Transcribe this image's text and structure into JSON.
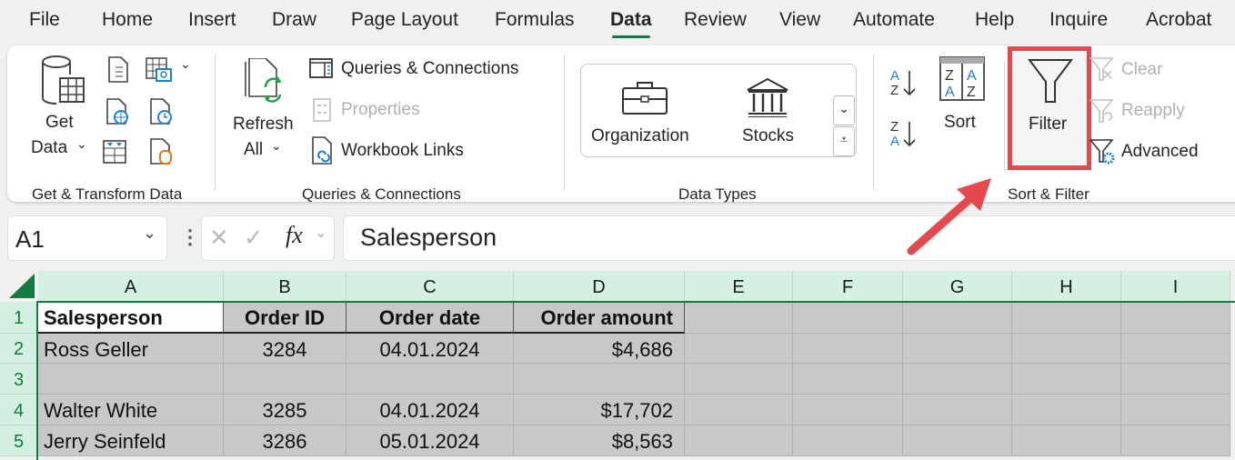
{
  "tabs": [
    "File",
    "Home",
    "Insert",
    "Draw",
    "Page Layout",
    "Formulas",
    "Data",
    "Review",
    "View",
    "Automate",
    "Help",
    "Inquire",
    "Acrobat"
  ],
  "active_tab": "Data",
  "ribbon": {
    "get_data_line1": "Get",
    "get_data_line2": "Data",
    "group_get_transform": "Get & Transform Data",
    "refresh_line1": "Refresh",
    "refresh_line2": "All",
    "queries_connections": "Queries & Connections",
    "properties": "Properties",
    "workbook_links": "Workbook Links",
    "group_queries": "Queries & Connections",
    "organization": "Organization",
    "stocks": "Stocks",
    "group_data_types": "Data Types",
    "sort": "Sort",
    "filter": "Filter",
    "clear": "Clear",
    "reapply": "Reapply",
    "advanced": "Advanced",
    "group_sort_filter": "Sort & Filter"
  },
  "highlight_color": "#e5484d",
  "formula_bar": {
    "name_box": "A1",
    "fx": "fx",
    "content": "Salesperson"
  },
  "columns": [
    "A",
    "B",
    "C",
    "D",
    "E",
    "F",
    "G",
    "H",
    "I"
  ],
  "rows": [
    "1",
    "2",
    "3",
    "4",
    "5"
  ],
  "table": {
    "headers": [
      "Salesperson",
      "Order ID",
      "Order date",
      "Order amount"
    ],
    "data": [
      [
        "Ross Geller",
        "3284",
        "04.01.2024",
        "$4,686"
      ],
      [
        "",
        "",
        "",
        ""
      ],
      [
        "Walter White",
        "3285",
        "04.01.2024",
        "$17,702"
      ],
      [
        "Jerry Seinfeld",
        "3286",
        "05.01.2024",
        "$8,563"
      ]
    ]
  }
}
